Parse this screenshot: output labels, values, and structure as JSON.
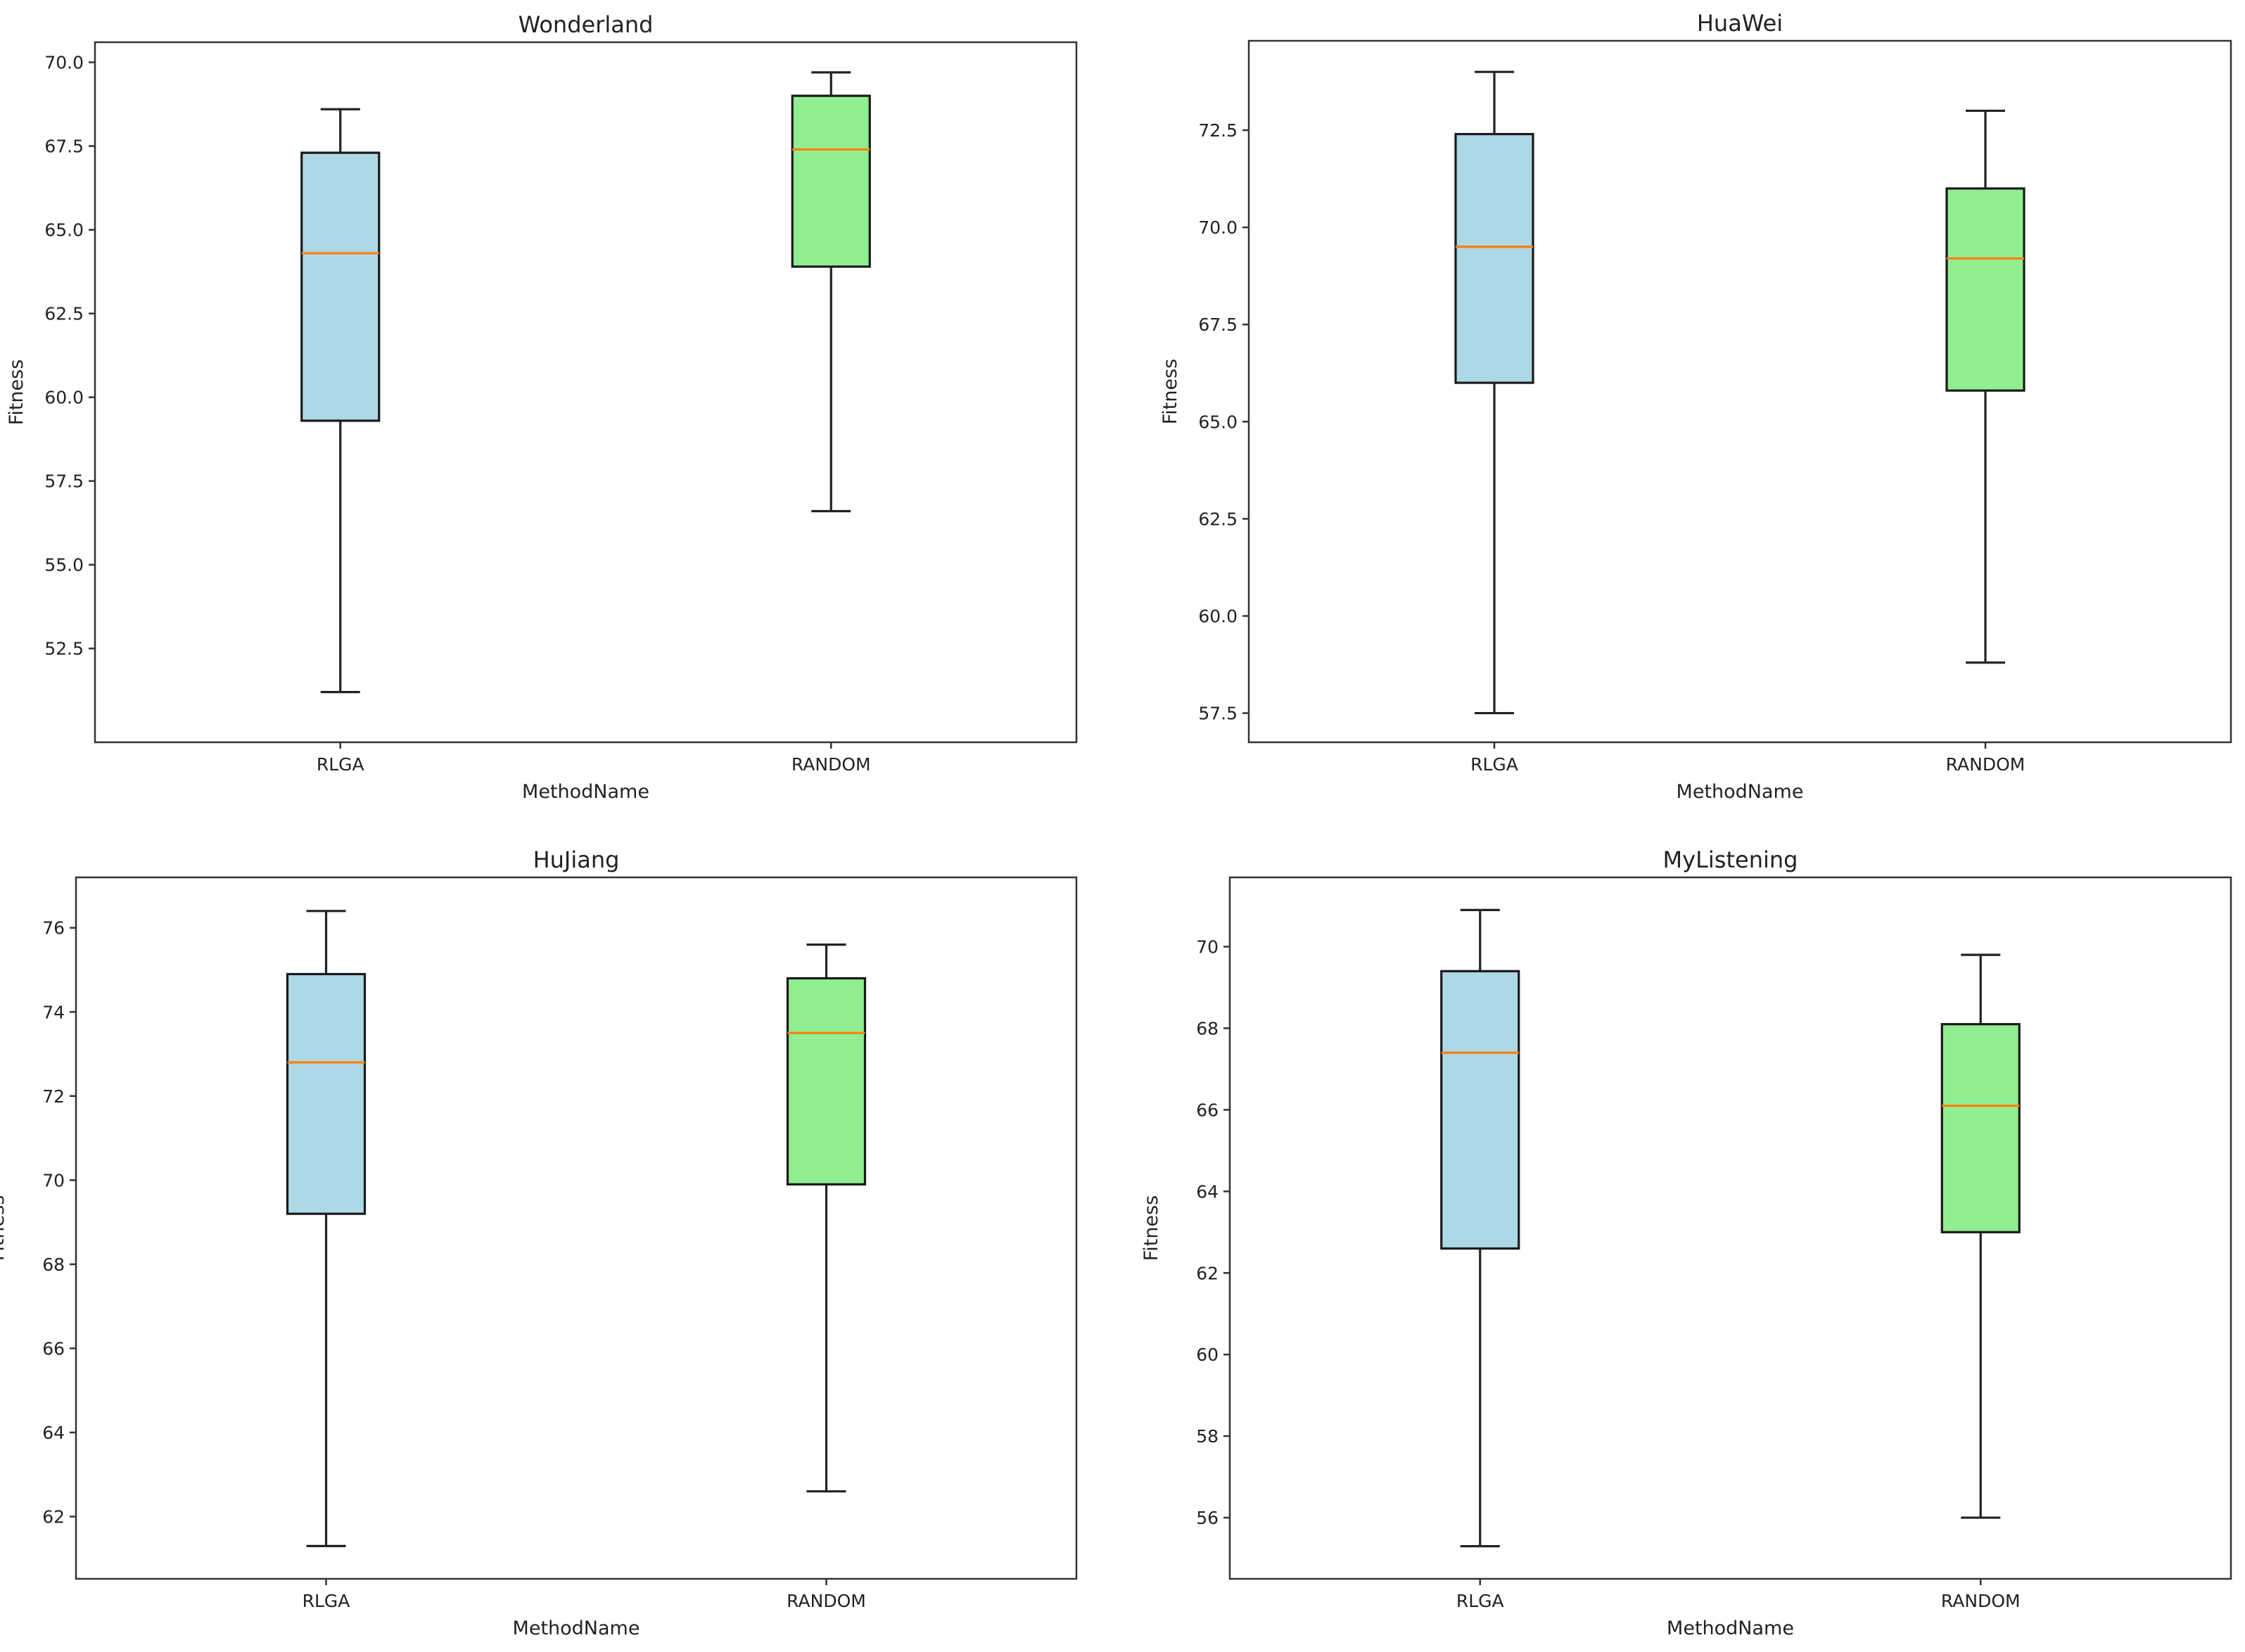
{
  "chart_data": [
    {
      "type": "boxplot",
      "title": "Wonderland",
      "xlabel": "MethodName",
      "ylabel": "Fitness",
      "categories": [
        "RLGA",
        "RANDOM"
      ],
      "ylim": [
        49.7,
        70.6
      ],
      "yticks": [
        52.5,
        55.0,
        57.5,
        60.0,
        62.5,
        65.0,
        67.5,
        70.0
      ],
      "ytick_labels": [
        "52.5",
        "55.0",
        "57.5",
        "60.0",
        "62.5",
        "65.0",
        "67.5",
        "70.0"
      ],
      "boxes": [
        {
          "label": "RLGA",
          "whislo": 51.2,
          "q1": 59.3,
          "med": 64.3,
          "q3": 67.3,
          "whishi": 68.6,
          "color": "#add8e6"
        },
        {
          "label": "RANDOM",
          "whislo": 56.6,
          "q1": 63.9,
          "med": 67.4,
          "q3": 69.0,
          "whishi": 69.7,
          "color": "#90ee90"
        }
      ]
    },
    {
      "type": "boxplot",
      "title": "HuaWei",
      "xlabel": "MethodName",
      "ylabel": "Fitness",
      "categories": [
        "RLGA",
        "RANDOM"
      ],
      "ylim": [
        56.75,
        74.8
      ],
      "yticks": [
        57.5,
        60.0,
        62.5,
        65.0,
        67.5,
        70.0,
        72.5
      ],
      "ytick_labels": [
        "57.5",
        "60.0",
        "62.5",
        "65.0",
        "67.5",
        "70.0",
        "72.5"
      ],
      "boxes": [
        {
          "label": "RLGA",
          "whislo": 57.5,
          "q1": 66.0,
          "med": 69.5,
          "q3": 72.4,
          "whishi": 74.0,
          "color": "#add8e6"
        },
        {
          "label": "RANDOM",
          "whislo": 58.8,
          "q1": 65.8,
          "med": 69.2,
          "q3": 71.0,
          "whishi": 73.0,
          "color": "#90ee90"
        }
      ]
    },
    {
      "type": "boxplot",
      "title": "HuJiang",
      "xlabel": "MethodName",
      "ylabel": "Fitness",
      "categories": [
        "RLGA",
        "RANDOM"
      ],
      "ylim": [
        60.52,
        77.2
      ],
      "yticks": [
        62,
        64,
        66,
        68,
        70,
        72,
        74,
        76
      ],
      "ytick_labels": [
        "62",
        "64",
        "66",
        "68",
        "70",
        "72",
        "74",
        "76"
      ],
      "boxes": [
        {
          "label": "RLGA",
          "whislo": 61.3,
          "q1": 69.2,
          "med": 72.8,
          "q3": 74.9,
          "whishi": 76.4,
          "color": "#add8e6"
        },
        {
          "label": "RANDOM",
          "whislo": 62.6,
          "q1": 69.9,
          "med": 73.5,
          "q3": 74.8,
          "whishi": 75.6,
          "color": "#90ee90"
        }
      ]
    },
    {
      "type": "boxplot",
      "title": "MyListening",
      "xlabel": "MethodName",
      "ylabel": "Fitness",
      "categories": [
        "RLGA",
        "RANDOM"
      ],
      "ylim": [
        54.5,
        71.7
      ],
      "yticks": [
        56,
        58,
        60,
        62,
        64,
        66,
        68,
        70
      ],
      "ytick_labels": [
        "56",
        "58",
        "60",
        "62",
        "64",
        "66",
        "68",
        "70"
      ],
      "boxes": [
        {
          "label": "RLGA",
          "whislo": 55.3,
          "q1": 62.6,
          "med": 67.4,
          "q3": 69.4,
          "whishi": 70.9,
          "color": "#add8e6"
        },
        {
          "label": "RANDOM",
          "whislo": 56.0,
          "q1": 63.0,
          "med": 66.1,
          "q3": 68.1,
          "whishi": 69.8,
          "color": "#90ee90"
        }
      ]
    }
  ]
}
